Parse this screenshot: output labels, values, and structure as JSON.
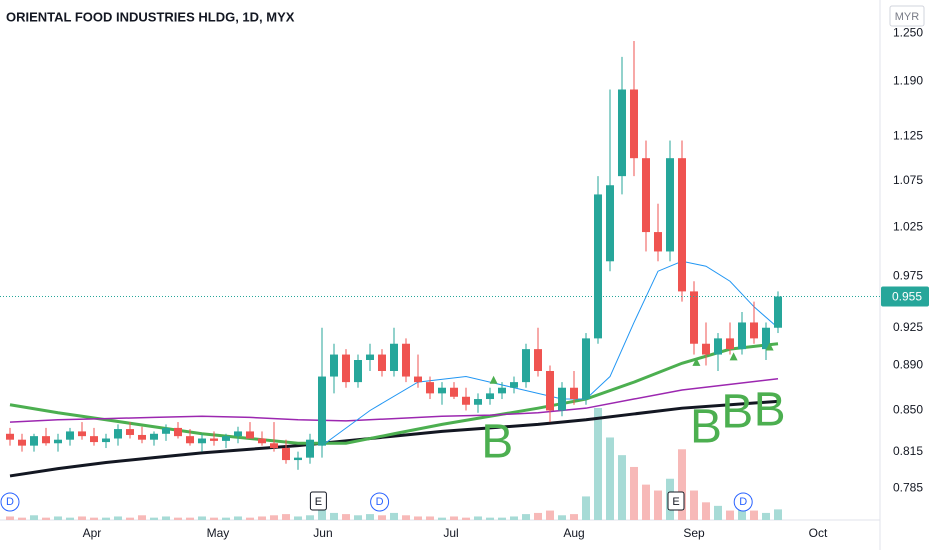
{
  "chart_data": {
    "type": "candlestick",
    "title": "ORIENTAL FOOD INDUSTRIES HLDG, 1D, MYX",
    "currency": "MYR",
    "log_scale": true,
    "up_color": "#26a69a",
    "down_color": "#ef5350",
    "ylim": [
      0.76,
      1.293
    ],
    "yticks": [
      {
        "value": 1.25,
        "label": "1.250"
      },
      {
        "value": 1.19,
        "label": "1.190"
      },
      1.125,
      1.075,
      1.025,
      0.975,
      0.925,
      {
        "value": 0.89,
        "label": "0.890"
      },
      {
        "value": 0.85,
        "label": "0.850"
      },
      0.815,
      0.785
    ],
    "xlim": [
      -0.833,
      72.5
    ],
    "xticks": [
      {
        "value": 6.83,
        "label": "Apr"
      },
      {
        "value": 17.33,
        "label": "May"
      },
      {
        "value": 26.08,
        "label": "Jun"
      },
      {
        "value": 36.75,
        "label": "Jul"
      },
      {
        "value": 47,
        "label": "Aug"
      },
      {
        "value": 57,
        "label": "Sep"
      },
      {
        "value": 67.33,
        "label": "Oct"
      }
    ],
    "candles": [
      [
        0.83,
        0.835,
        0.82,
        0.825
      ],
      [
        0.825,
        0.83,
        0.815,
        0.82
      ],
      [
        0.82,
        0.83,
        0.815,
        0.828
      ],
      [
        0.828,
        0.835,
        0.82,
        0.822
      ],
      [
        0.822,
        0.83,
        0.815,
        0.825
      ],
      [
        0.825,
        0.835,
        0.82,
        0.832
      ],
      [
        0.832,
        0.84,
        0.825,
        0.828
      ],
      [
        0.828,
        0.835,
        0.82,
        0.823
      ],
      [
        0.823,
        0.83,
        0.818,
        0.826
      ],
      [
        0.826,
        0.838,
        0.82,
        0.834
      ],
      [
        0.834,
        0.84,
        0.826,
        0.829
      ],
      [
        0.829,
        0.836,
        0.822,
        0.825
      ],
      [
        0.825,
        0.832,
        0.82,
        0.83
      ],
      [
        0.83,
        0.838,
        0.824,
        0.835
      ],
      [
        0.835,
        0.84,
        0.826,
        0.828
      ],
      [
        0.828,
        0.834,
        0.82,
        0.822
      ],
      [
        0.822,
        0.83,
        0.815,
        0.826
      ],
      [
        0.826,
        0.832,
        0.82,
        0.824
      ],
      [
        0.824,
        0.83,
        0.818,
        0.828
      ],
      [
        0.828,
        0.836,
        0.822,
        0.832
      ],
      [
        0.832,
        0.84,
        0.826,
        0.826
      ],
      [
        0.826,
        0.832,
        0.82,
        0.822
      ],
      [
        0.822,
        0.84,
        0.815,
        0.818
      ],
      [
        0.818,
        0.825,
        0.805,
        0.808
      ],
      [
        0.808,
        0.815,
        0.8,
        0.81
      ],
      [
        0.81,
        0.83,
        0.805,
        0.825
      ],
      [
        0.82,
        0.925,
        0.81,
        0.88
      ],
      [
        0.88,
        0.91,
        0.865,
        0.9
      ],
      [
        0.9,
        0.905,
        0.87,
        0.875
      ],
      [
        0.875,
        0.9,
        0.87,
        0.895
      ],
      [
        0.895,
        0.91,
        0.885,
        0.9
      ],
      [
        0.9,
        0.905,
        0.88,
        0.885
      ],
      [
        0.885,
        0.925,
        0.88,
        0.91
      ],
      [
        0.91,
        0.915,
        0.875,
        0.88
      ],
      [
        0.88,
        0.9,
        0.87,
        0.875
      ],
      [
        0.875,
        0.88,
        0.86,
        0.865
      ],
      [
        0.865,
        0.875,
        0.855,
        0.87
      ],
      [
        0.87,
        0.875,
        0.86,
        0.862
      ],
      [
        0.862,
        0.87,
        0.85,
        0.855
      ],
      [
        0.855,
        0.865,
        0.848,
        0.86
      ],
      [
        0.86,
        0.87,
        0.855,
        0.865
      ],
      [
        0.865,
        0.875,
        0.86,
        0.87
      ],
      [
        0.87,
        0.88,
        0.865,
        0.875
      ],
      [
        0.875,
        0.91,
        0.87,
        0.905
      ],
      [
        0.905,
        0.925,
        0.88,
        0.885
      ],
      [
        0.885,
        0.89,
        0.84,
        0.85
      ],
      [
        0.85,
        0.875,
        0.845,
        0.87
      ],
      [
        0.87,
        0.885,
        0.855,
        0.86
      ],
      [
        0.86,
        0.92,
        0.855,
        0.915
      ],
      [
        0.915,
        1.08,
        0.91,
        1.06
      ],
      [
        0.99,
        1.18,
        0.98,
        1.07
      ],
      [
        1.08,
        1.22,
        1.06,
        1.18
      ],
      [
        1.18,
        1.24,
        1.08,
        1.1
      ],
      [
        1.1,
        1.12,
        1.0,
        1.02
      ],
      [
        1.02,
        1.05,
        0.99,
        1.0
      ],
      [
        1.0,
        1.12,
        0.99,
        1.1
      ],
      [
        1.1,
        1.12,
        0.95,
        0.96
      ],
      [
        0.96,
        0.97,
        0.9,
        0.91
      ],
      [
        0.91,
        0.93,
        0.89,
        0.9
      ],
      [
        0.9,
        0.92,
        0.885,
        0.915
      ],
      [
        0.915,
        0.93,
        0.9,
        0.905
      ],
      [
        0.905,
        0.94,
        0.9,
        0.93
      ],
      [
        0.93,
        0.95,
        0.91,
        0.915
      ],
      [
        0.905,
        0.93,
        0.895,
        0.925
      ],
      [
        0.925,
        0.96,
        0.92,
        0.955
      ]
    ],
    "volume": [
      3,
      2,
      4,
      2,
      3,
      2,
      3,
      2,
      2,
      3,
      2,
      4,
      2,
      3,
      2,
      2,
      3,
      2,
      2,
      3,
      2,
      3,
      4,
      5,
      3,
      4,
      12,
      6,
      5,
      4,
      5,
      4,
      6,
      4,
      3,
      3,
      2,
      3,
      2,
      3,
      2,
      2,
      3,
      5,
      6,
      8,
      4,
      5,
      20,
      95,
      70,
      55,
      45,
      30,
      25,
      35,
      60,
      25,
      15,
      12,
      8,
      10,
      8,
      6,
      9
    ],
    "lines": [
      {
        "color": "#131722",
        "width": 3,
        "x": [
          0,
          4,
          8,
          12,
          16,
          20,
          24,
          28,
          32,
          36,
          40,
          44,
          48,
          52,
          56,
          60,
          64
        ],
        "values": [
          0.795,
          0.801,
          0.806,
          0.81,
          0.814,
          0.817,
          0.82,
          0.824,
          0.828,
          0.832,
          0.835,
          0.838,
          0.842,
          0.847,
          0.852,
          0.855,
          0.858
        ]
      },
      {
        "color": "#4caf50",
        "width": 3,
        "x": [
          0,
          4,
          8,
          12,
          16,
          20,
          24,
          28,
          32,
          36,
          40,
          44,
          48,
          52,
          56,
          60,
          64
        ],
        "values": [
          0.855,
          0.848,
          0.842,
          0.836,
          0.83,
          0.826,
          0.822,
          0.822,
          0.83,
          0.838,
          0.845,
          0.852,
          0.86,
          0.875,
          0.892,
          0.905,
          0.91
        ]
      },
      {
        "color": "#9c27b0",
        "width": 1.5,
        "x": [
          0,
          4,
          8,
          12,
          16,
          20,
          24,
          28,
          32,
          36,
          40,
          44,
          48,
          52,
          56,
          60,
          64
        ],
        "values": [
          0.84,
          0.842,
          0.843,
          0.844,
          0.845,
          0.844,
          0.842,
          0.841,
          0.843,
          0.845,
          0.846,
          0.848,
          0.852,
          0.86,
          0.868,
          0.873,
          0.878
        ]
      },
      {
        "color": "#2196f3",
        "width": 1,
        "x": [
          26,
          30,
          34,
          38,
          42,
          46,
          48,
          50,
          52,
          54,
          56,
          58,
          60,
          62,
          64
        ],
        "values": [
          0.82,
          0.85,
          0.875,
          0.88,
          0.87,
          0.86,
          0.86,
          0.88,
          0.93,
          0.98,
          0.99,
          0.985,
          0.97,
          0.945,
          0.925
        ]
      }
    ],
    "annotations": [
      {
        "text": "B",
        "x": 40.6
      },
      {
        "text": "B",
        "x": 58
      },
      {
        "text": "B",
        "x": 60.6
      },
      {
        "text": "B",
        "x": 63.3
      }
    ],
    "events": [
      {
        "text": "D",
        "x": 0
      },
      {
        "text": "E",
        "x": 25.7
      },
      {
        "text": "D",
        "x": 30.8
      },
      {
        "text": "E",
        "x": 55.5
      },
      {
        "text": "D",
        "x": 61.1
      }
    ]
  }
}
